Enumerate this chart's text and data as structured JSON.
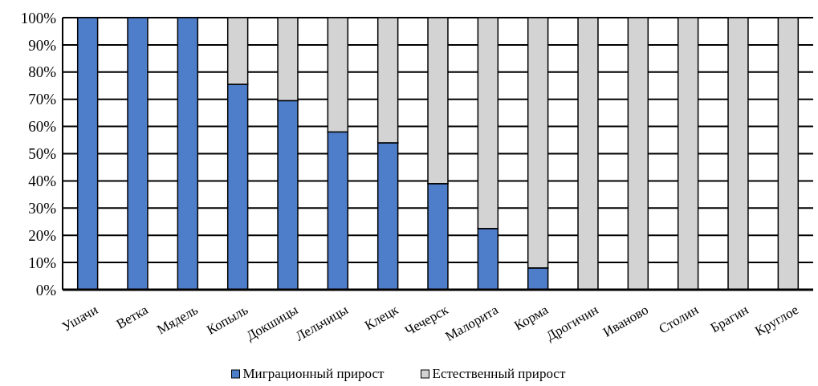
{
  "chart_data": {
    "type": "bar",
    "stacked": true,
    "categories": [
      "Ушачи",
      "Ветка",
      "Мядель",
      "Копыль",
      "Докшицы",
      "Лельчицы",
      "Клецк",
      "Чечерск",
      "Малорита",
      "Корма",
      "Дрогичин",
      "Иваново",
      "Столин",
      "Брагин",
      "Круглое"
    ],
    "series": [
      {
        "name": "Миграционный прирост",
        "color": "#4e7dc9",
        "values": [
          100,
          100,
          100,
          75.5,
          69.5,
          58,
          54,
          39,
          22.5,
          8,
          0,
          0,
          0,
          0,
          0
        ]
      },
      {
        "name": "Естественный прирост",
        "color": "#d4d3d4",
        "values": [
          0,
          0,
          0,
          24.5,
          30.5,
          42,
          46,
          61,
          77.5,
          92,
          100,
          100,
          100,
          100,
          100
        ]
      }
    ],
    "ylim": [
      0,
      100
    ],
    "yticks": [
      {
        "value": 0,
        "label": "0%"
      },
      {
        "value": 10,
        "label": "10%"
      },
      {
        "value": 20,
        "label": "20%"
      },
      {
        "value": 30,
        "label": "30%"
      },
      {
        "value": 40,
        "label": "40%"
      },
      {
        "value": 50,
        "label": "50%"
      },
      {
        "value": 60,
        "label": "60%"
      },
      {
        "value": 70,
        "label": "70%"
      },
      {
        "value": 80,
        "label": "80%"
      },
      {
        "value": 90,
        "label": "90%"
      },
      {
        "value": 100,
        "label": "100%"
      }
    ],
    "grid": "y",
    "legend": "bottom"
  }
}
